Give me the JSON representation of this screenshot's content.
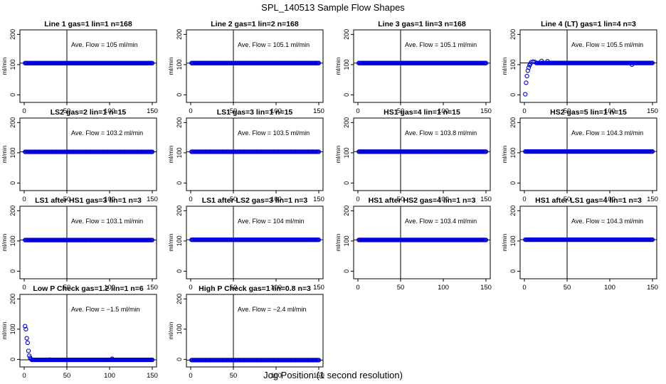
{
  "figure": {
    "title": "SPL_140513  Sample Flow Shapes",
    "xlabel": "Jog Position (1 second resolution)"
  },
  "style": {
    "point_color": "#0000dd",
    "axis_color": "#000000"
  },
  "chart_data": [
    {
      "type": "scatter",
      "title": "Line 1 gas=1 lin=1 n=168",
      "annotation": "Ave. Flow =  105  ml/min",
      "ylabel": "ml/min",
      "xlim": [
        0,
        150
      ],
      "ylim": [
        -25,
        215
      ],
      "xticks": [
        0,
        50,
        100,
        150
      ],
      "yticks": [
        0,
        100,
        200
      ],
      "vline": 50,
      "hline": 105,
      "points": {
        "x_start": 1,
        "x_end": 150,
        "steady": 105
      }
    },
    {
      "type": "scatter",
      "title": "Line 2 gas=1 lin=2 n=168",
      "annotation": "Ave. Flow =  105.1  ml/min",
      "ylabel": "ml/min",
      "xlim": [
        0,
        150
      ],
      "ylim": [
        -25,
        215
      ],
      "xticks": [
        0,
        50,
        100,
        150
      ],
      "yticks": [
        0,
        100,
        200
      ],
      "vline": 50,
      "hline": 105.1,
      "points": {
        "x_start": 1,
        "x_end": 150,
        "steady": 105.1
      }
    },
    {
      "type": "scatter",
      "title": "Line 3 gas=1 lin=3 n=168",
      "annotation": "Ave. Flow =  105.1  ml/min",
      "ylabel": "ml/min",
      "xlim": [
        0,
        150
      ],
      "ylim": [
        -25,
        215
      ],
      "xticks": [
        0,
        50,
        100,
        150
      ],
      "yticks": [
        0,
        100,
        200
      ],
      "vline": 50,
      "hline": 105.1,
      "points": {
        "x_start": 1,
        "x_end": 150,
        "steady": 105.1
      }
    },
    {
      "type": "scatter",
      "title": "Line 4 (LT) gas=1 lin=4 n=3",
      "annotation": "Ave. Flow =  105.5  ml/min",
      "ylabel": "ml/min",
      "xlim": [
        0,
        150
      ],
      "ylim": [
        -25,
        215
      ],
      "xticks": [
        0,
        50,
        100,
        150
      ],
      "yticks": [
        0,
        100,
        200
      ],
      "vline": 50,
      "hline": 105.5,
      "points": {
        "x_start": 14,
        "x_end": 150,
        "steady": 105.5,
        "early": [
          [
            1,
            2
          ],
          [
            2,
            40
          ],
          [
            3,
            62
          ],
          [
            4,
            80
          ],
          [
            5,
            90
          ],
          [
            6,
            98
          ],
          [
            7,
            103
          ],
          [
            8,
            108
          ],
          [
            10,
            110
          ],
          [
            12,
            109
          ]
        ],
        "outliers": [
          [
            20,
            112
          ],
          [
            27,
            111
          ],
          [
            126,
            100
          ]
        ]
      }
    },
    {
      "type": "scatter",
      "title": "LS2 gas=2 lin=1 n=15",
      "annotation": "Ave. Flow =  103.2  ml/min",
      "ylabel": "ml/min",
      "xlim": [
        0,
        150
      ],
      "ylim": [
        -25,
        215
      ],
      "xticks": [
        0,
        50,
        100,
        150
      ],
      "yticks": [
        0,
        100,
        200
      ],
      "vline": 50,
      "hline": 103.2,
      "points": {
        "x_start": 1,
        "x_end": 150,
        "steady": 103.2
      }
    },
    {
      "type": "scatter",
      "title": "LS1 gas=3 lin=1 n=15",
      "annotation": "Ave. Flow =  103.5  ml/min",
      "ylabel": "ml/min",
      "xlim": [
        0,
        150
      ],
      "ylim": [
        -25,
        215
      ],
      "xticks": [
        0,
        50,
        100,
        150
      ],
      "yticks": [
        0,
        100,
        200
      ],
      "vline": 50,
      "hline": 103.5,
      "points": {
        "x_start": 1,
        "x_end": 150,
        "steady": 103.5
      }
    },
    {
      "type": "scatter",
      "title": "HS1 gas=4 lin=1 n=15",
      "annotation": "Ave. Flow =  103.8  ml/min",
      "ylabel": "ml/min",
      "xlim": [
        0,
        150
      ],
      "ylim": [
        -25,
        215
      ],
      "xticks": [
        0,
        50,
        100,
        150
      ],
      "yticks": [
        0,
        100,
        200
      ],
      "vline": 50,
      "hline": 103.8,
      "points": {
        "x_start": 1,
        "x_end": 150,
        "steady": 103.8
      }
    },
    {
      "type": "scatter",
      "title": "HS2 gas=5 lin=1 n=15",
      "annotation": "Ave. Flow =  104.3  ml/min",
      "ylabel": "ml/min",
      "xlim": [
        0,
        150
      ],
      "ylim": [
        -25,
        215
      ],
      "xticks": [
        0,
        50,
        100,
        150
      ],
      "yticks": [
        0,
        100,
        200
      ],
      "vline": 50,
      "hline": 104.3,
      "points": {
        "x_start": 1,
        "x_end": 150,
        "steady": 104.3
      }
    },
    {
      "type": "scatter",
      "title": "LS1 after HS1 gas=3 lin=1 n=3",
      "annotation": "Ave. Flow =  103.1  ml/min",
      "ylabel": "ml/min",
      "xlim": [
        0,
        150
      ],
      "ylim": [
        -25,
        215
      ],
      "xticks": [
        0,
        50,
        100,
        150
      ],
      "yticks": [
        0,
        100,
        200
      ],
      "vline": 50,
      "hline": 103.1,
      "points": {
        "x_start": 1,
        "x_end": 150,
        "steady": 103.1
      }
    },
    {
      "type": "scatter",
      "title": "LS1 after LS2 gas=3 lin=1 n=3",
      "annotation": "Ave. Flow =  104  ml/min",
      "ylabel": "ml/min",
      "xlim": [
        0,
        150
      ],
      "ylim": [
        -25,
        215
      ],
      "xticks": [
        0,
        50,
        100,
        150
      ],
      "yticks": [
        0,
        100,
        200
      ],
      "vline": 50,
      "hline": 104,
      "points": {
        "x_start": 1,
        "x_end": 150,
        "steady": 104
      }
    },
    {
      "type": "scatter",
      "title": "HS1 after HS2 gas=4 lin=1 n=3",
      "annotation": "Ave. Flow =  103.4  ml/min",
      "ylabel": "ml/min",
      "xlim": [
        0,
        150
      ],
      "ylim": [
        -25,
        215
      ],
      "xticks": [
        0,
        50,
        100,
        150
      ],
      "yticks": [
        0,
        100,
        200
      ],
      "vline": 50,
      "hline": 103.4,
      "points": {
        "x_start": 1,
        "x_end": 150,
        "steady": 103.4
      }
    },
    {
      "type": "scatter",
      "title": "HS1 after LS1 gas=4 lin=1 n=3",
      "annotation": "Ave. Flow =  104.3  ml/min",
      "ylabel": "ml/min",
      "xlim": [
        0,
        150
      ],
      "ylim": [
        -25,
        215
      ],
      "xticks": [
        0,
        50,
        100,
        150
      ],
      "yticks": [
        0,
        100,
        200
      ],
      "vline": 50,
      "hline": 104.3,
      "points": {
        "x_start": 1,
        "x_end": 150,
        "steady": 104.3
      }
    },
    {
      "type": "scatter",
      "title": "Low P Check gas=1.2 lin=1 n=6",
      "annotation": "Ave. Flow =  −1.5  ml/min",
      "ylabel": "ml/min",
      "xlim": [
        0,
        150
      ],
      "ylim": [
        -25,
        215
      ],
      "xticks": [
        0,
        50,
        100,
        150
      ],
      "yticks": [
        0,
        100,
        200
      ],
      "vline": 50,
      "hline": -1.5,
      "points": {
        "x_start": 9,
        "x_end": 150,
        "steady": -1.5,
        "early": [
          [
            1,
            110
          ],
          [
            2,
            100
          ],
          [
            3,
            70
          ],
          [
            4,
            55
          ],
          [
            5,
            28
          ],
          [
            6,
            12
          ],
          [
            7,
            5
          ],
          [
            8,
            1
          ]
        ],
        "outliers": [
          [
            30,
            -1
          ],
          [
            103,
            2
          ]
        ]
      }
    },
    {
      "type": "scatter",
      "title": "High P Check gas=1 lin=0.8 n=3",
      "annotation": "Ave. Flow =  −2.4  ml/min",
      "ylabel": "ml/min",
      "xlim": [
        0,
        150
      ],
      "ylim": [
        -25,
        215
      ],
      "xticks": [
        0,
        50,
        100,
        150
      ],
      "yticks": [
        0,
        100,
        200
      ],
      "vline": 50,
      "hline": -2.4,
      "points": {
        "x_start": 1,
        "x_end": 150,
        "steady": -2.4
      }
    }
  ]
}
